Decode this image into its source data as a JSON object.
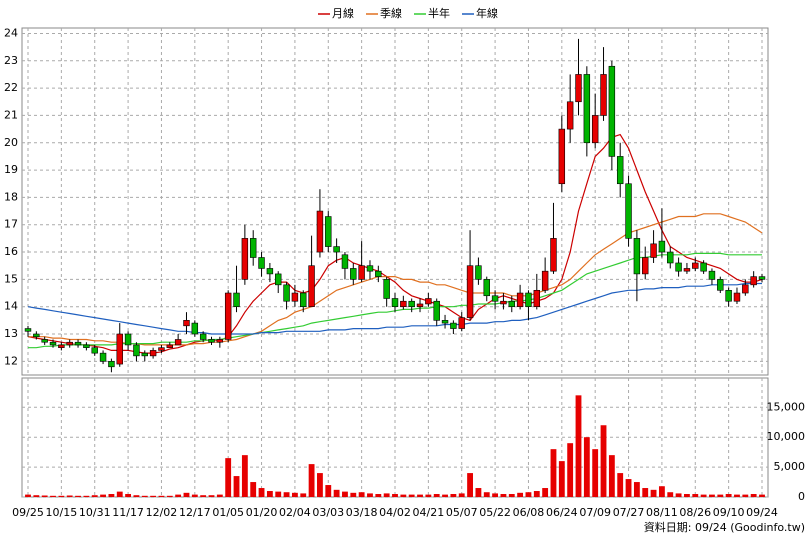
{
  "chart_data": {
    "type": "candlestick",
    "categories": [
      "09/25",
      null,
      null,
      null,
      "10/15",
      null,
      null,
      null,
      "10/31",
      null,
      null,
      null,
      "11/17",
      null,
      null,
      null,
      "12/02",
      null,
      null,
      null,
      "12/17",
      null,
      null,
      null,
      "01/05",
      null,
      null,
      null,
      "01/20",
      null,
      null,
      null,
      "02/04",
      null,
      null,
      null,
      "03/03",
      null,
      null,
      null,
      "03/18",
      null,
      null,
      null,
      "04/02",
      null,
      null,
      null,
      "04/21",
      null,
      null,
      null,
      "05/07",
      null,
      null,
      null,
      "05/22",
      null,
      null,
      null,
      "06/08",
      null,
      null,
      null,
      "06/24",
      null,
      null,
      null,
      "07/09",
      null,
      null,
      null,
      "07/27",
      null,
      null,
      null,
      "08/11",
      null,
      null,
      null,
      "08/26",
      null,
      null,
      null,
      "09/10",
      null,
      null,
      null,
      "09/24"
    ],
    "open": [
      13.2,
      13.0,
      12.8,
      12.7,
      12.5,
      12.6,
      12.7,
      12.6,
      12.5,
      12.3,
      12.0,
      11.9,
      13.0,
      12.6,
      12.3,
      12.2,
      12.4,
      12.5,
      12.6,
      13.3,
      13.4,
      13.0,
      12.8,
      12.7,
      12.8,
      14.5,
      15.0,
      16.5,
      15.8,
      15.4,
      15.2,
      14.8,
      14.2,
      14.5,
      14.0,
      16.0,
      17.3,
      16.2,
      15.9,
      15.4,
      15.0,
      15.5,
      15.3,
      15.0,
      14.3,
      14.0,
      14.2,
      14.0,
      14.1,
      14.2,
      13.5,
      13.4,
      13.2,
      13.6,
      15.5,
      15.0,
      14.4,
      14.1,
      14.2,
      14.0,
      14.5,
      14.0,
      14.6,
      15.3,
      18.5,
      20.5,
      21.5,
      22.5,
      20.0,
      21.0,
      22.8,
      19.5,
      18.5,
      16.5,
      15.2,
      15.8,
      16.4,
      16.0,
      15.6,
      15.3,
      15.4,
      15.6,
      15.3,
      15.0,
      14.6,
      14.2,
      14.5,
      14.8,
      15.1
    ],
    "high": [
      13.3,
      13.1,
      12.9,
      12.8,
      12.7,
      12.8,
      12.8,
      12.7,
      12.6,
      12.4,
      12.1,
      13.4,
      13.1,
      12.7,
      12.4,
      12.5,
      12.6,
      12.7,
      13.0,
      13.8,
      13.5,
      13.1,
      12.9,
      12.9,
      14.6,
      15.5,
      17.0,
      16.8,
      16.0,
      15.6,
      15.3,
      14.9,
      14.8,
      14.6,
      16.6,
      18.3,
      17.5,
      16.5,
      16.0,
      15.6,
      16.4,
      15.7,
      15.5,
      15.1,
      14.5,
      14.4,
      14.3,
      14.3,
      14.5,
      14.3,
      13.7,
      13.5,
      13.8,
      16.8,
      15.8,
      15.1,
      14.6,
      14.5,
      14.4,
      14.8,
      14.6,
      15.2,
      15.8,
      17.8,
      21.0,
      22.5,
      23.8,
      22.8,
      21.8,
      23.5,
      23.0,
      20.0,
      18.8,
      16.8,
      16.2,
      16.8,
      17.6,
      16.2,
      15.8,
      15.6,
      15.8,
      15.7,
      15.4,
      15.1,
      14.7,
      14.7,
      15.0,
      15.3,
      15.2
    ],
    "low": [
      12.9,
      12.8,
      12.6,
      12.5,
      12.4,
      12.5,
      12.5,
      12.4,
      12.2,
      11.9,
      11.6,
      11.8,
      12.4,
      12.0,
      12.0,
      12.1,
      12.3,
      12.5,
      12.6,
      13.0,
      12.9,
      12.7,
      12.6,
      12.5,
      12.7,
      13.8,
      14.8,
      15.5,
      15.1,
      14.9,
      14.5,
      13.9,
      14.0,
      13.8,
      14.0,
      15.8,
      16.0,
      15.6,
      15.0,
      14.8,
      14.9,
      15.0,
      14.9,
      14.0,
      13.8,
      13.9,
      13.8,
      13.8,
      14.0,
      13.3,
      13.2,
      13.0,
      13.1,
      13.5,
      14.8,
      14.2,
      13.9,
      13.9,
      13.8,
      13.9,
      13.5,
      13.9,
      14.5,
      15.2,
      18.2,
      20.0,
      21.0,
      19.5,
      19.8,
      20.8,
      19.0,
      18.0,
      16.2,
      14.2,
      15.0,
      15.6,
      15.8,
      15.4,
      15.1,
      15.2,
      15.3,
      15.2,
      14.8,
      14.5,
      14.0,
      14.1,
      14.4,
      14.7,
      14.9
    ],
    "close": [
      13.1,
      12.9,
      12.7,
      12.6,
      12.6,
      12.7,
      12.6,
      12.5,
      12.3,
      12.0,
      11.8,
      13.0,
      12.6,
      12.2,
      12.2,
      12.4,
      12.5,
      12.6,
      12.8,
      13.5,
      13.0,
      12.8,
      12.7,
      12.8,
      14.5,
      14.0,
      16.5,
      15.8,
      15.4,
      15.2,
      14.8,
      14.2,
      14.5,
      14.0,
      15.5,
      17.5,
      16.2,
      16.0,
      15.4,
      15.0,
      15.5,
      15.3,
      15.1,
      14.3,
      14.0,
      14.2,
      14.0,
      14.1,
      14.3,
      13.5,
      13.4,
      13.2,
      13.6,
      15.5,
      15.0,
      14.4,
      14.2,
      14.2,
      14.0,
      14.5,
      14.0,
      14.6,
      15.3,
      16.5,
      20.5,
      21.5,
      22.5,
      20.0,
      21.0,
      22.5,
      19.5,
      18.5,
      16.5,
      15.2,
      15.8,
      16.3,
      16.0,
      15.6,
      15.3,
      15.4,
      15.6,
      15.3,
      15.0,
      14.6,
      14.2,
      14.5,
      14.8,
      15.1,
      15.0
    ],
    "up_color": "#e60000",
    "down_color": "#00b400",
    "ylim": [
      11.5,
      24.2
    ],
    "yticks": [
      12,
      13,
      14,
      15,
      16,
      17,
      18,
      19,
      20,
      21,
      22,
      23,
      24
    ],
    "grid": true,
    "series": [
      {
        "name": "月線",
        "color": "#cc0000",
        "values": [
          12.9,
          12.85,
          12.8,
          12.75,
          12.7,
          12.65,
          12.6,
          12.6,
          12.55,
          12.5,
          12.4,
          12.4,
          12.4,
          12.35,
          12.3,
          12.3,
          12.35,
          12.45,
          12.5,
          12.6,
          12.7,
          12.75,
          12.8,
          12.75,
          12.9,
          13.3,
          13.8,
          14.2,
          14.5,
          14.8,
          14.9,
          14.9,
          14.6,
          14.5,
          14.6,
          15.0,
          15.5,
          15.7,
          15.8,
          15.6,
          15.5,
          15.4,
          15.3,
          15.1,
          14.9,
          14.6,
          14.4,
          14.3,
          14.2,
          14.1,
          14.0,
          13.8,
          13.6,
          13.5,
          13.9,
          14.1,
          14.3,
          14.4,
          14.3,
          14.2,
          14.1,
          14.2,
          14.3,
          14.5,
          15.0,
          16.0,
          17.5,
          18.5,
          19.5,
          19.8,
          20.2,
          20.3,
          19.8,
          19.0,
          18.2,
          17.5,
          16.8,
          16.2,
          16.0,
          15.8,
          15.7,
          15.6,
          15.5,
          15.4,
          15.2,
          15.0,
          14.9,
          14.9,
          15.0
        ]
      },
      {
        "name": "季線",
        "color": "#e07020",
        "values": [
          12.9,
          12.9,
          12.9,
          12.85,
          12.85,
          12.8,
          12.8,
          12.8,
          12.75,
          12.75,
          12.7,
          12.7,
          12.65,
          12.65,
          12.6,
          12.6,
          12.6,
          12.6,
          12.6,
          12.6,
          12.65,
          12.65,
          12.7,
          12.7,
          12.75,
          12.8,
          12.9,
          13.0,
          13.1,
          13.3,
          13.5,
          13.6,
          13.8,
          13.9,
          14.0,
          14.2,
          14.4,
          14.6,
          14.7,
          14.8,
          14.9,
          15.0,
          15.1,
          15.1,
          15.1,
          15.0,
          15.0,
          14.9,
          14.9,
          14.8,
          14.8,
          14.7,
          14.6,
          14.5,
          14.5,
          14.5,
          14.5,
          14.5,
          14.4,
          14.4,
          14.4,
          14.5,
          14.6,
          14.7,
          14.8,
          15.0,
          15.3,
          15.6,
          15.9,
          16.1,
          16.3,
          16.5,
          16.7,
          16.8,
          16.9,
          17.0,
          17.1,
          17.2,
          17.3,
          17.3,
          17.3,
          17.4,
          17.4,
          17.4,
          17.3,
          17.2,
          17.1,
          16.9,
          16.7
        ]
      },
      {
        "name": "半年",
        "color": "#33cc33",
        "values": [
          12.5,
          12.5,
          12.55,
          12.55,
          12.6,
          12.6,
          12.6,
          12.6,
          12.6,
          12.6,
          12.6,
          12.65,
          12.65,
          12.65,
          12.65,
          12.65,
          12.7,
          12.7,
          12.7,
          12.7,
          12.75,
          12.75,
          12.8,
          12.8,
          12.85,
          12.9,
          12.95,
          13.0,
          13.05,
          13.1,
          13.15,
          13.2,
          13.25,
          13.3,
          13.4,
          13.45,
          13.5,
          13.55,
          13.6,
          13.65,
          13.7,
          13.75,
          13.8,
          13.8,
          13.85,
          13.9,
          13.9,
          13.95,
          13.95,
          14.0,
          14.0,
          14.0,
          14.05,
          14.05,
          14.1,
          14.1,
          14.1,
          14.15,
          14.2,
          14.2,
          14.25,
          14.3,
          14.4,
          14.5,
          14.6,
          14.8,
          15.0,
          15.2,
          15.3,
          15.4,
          15.5,
          15.6,
          15.7,
          15.8,
          15.8,
          15.85,
          15.9,
          15.9,
          15.9,
          15.9,
          15.95,
          15.95,
          15.95,
          15.95,
          15.9,
          15.9,
          15.9,
          15.9,
          15.9
        ]
      },
      {
        "name": "年線",
        "color": "#1f5fbf",
        "values": [
          14.0,
          13.95,
          13.9,
          13.85,
          13.8,
          13.75,
          13.7,
          13.65,
          13.6,
          13.55,
          13.5,
          13.45,
          13.4,
          13.35,
          13.3,
          13.25,
          13.2,
          13.15,
          13.1,
          13.1,
          13.05,
          13.05,
          13.0,
          13.0,
          13.0,
          13.0,
          13.0,
          13.0,
          13.05,
          13.05,
          13.05,
          13.1,
          13.1,
          13.1,
          13.1,
          13.1,
          13.15,
          13.15,
          13.15,
          13.2,
          13.2,
          13.2,
          13.2,
          13.25,
          13.25,
          13.25,
          13.3,
          13.3,
          13.3,
          13.3,
          13.35,
          13.35,
          13.35,
          13.4,
          13.4,
          13.4,
          13.45,
          13.45,
          13.5,
          13.5,
          13.55,
          13.6,
          13.7,
          13.8,
          13.9,
          14.0,
          14.1,
          14.2,
          14.3,
          14.4,
          14.5,
          14.55,
          14.6,
          14.6,
          14.65,
          14.65,
          14.7,
          14.7,
          14.7,
          14.75,
          14.75,
          14.75,
          14.8,
          14.8,
          14.8,
          14.8,
          14.85,
          14.85,
          14.85
        ]
      }
    ],
    "volume": {
      "color": "#e60000",
      "ylim": [
        0,
        19900
      ],
      "yticks": [
        0,
        {
          "value": 5000,
          "label": "5,000"
        },
        {
          "value": 10000,
          "label": "10,000"
        },
        {
          "value": 15000,
          "label": "15,000"
        }
      ],
      "values": [
        400,
        300,
        250,
        200,
        200,
        250,
        200,
        200,
        300,
        400,
        500,
        900,
        500,
        300,
        200,
        200,
        200,
        200,
        400,
        700,
        400,
        300,
        300,
        400,
        6500,
        3500,
        7000,
        2500,
        1500,
        1000,
        900,
        800,
        700,
        600,
        5500,
        4000,
        2000,
        1200,
        900,
        700,
        800,
        600,
        500,
        600,
        500,
        400,
        400,
        400,
        400,
        500,
        400,
        500,
        600,
        4000,
        1500,
        800,
        600,
        500,
        500,
        700,
        800,
        1000,
        1500,
        8000,
        6000,
        9000,
        17000,
        10000,
        8000,
        12000,
        7000,
        4000,
        3000,
        2500,
        1500,
        1200,
        1800,
        800,
        600,
        500,
        500,
        400,
        400,
        400,
        500,
        400,
        400,
        500,
        400
      ]
    },
    "footer": "資料日期: 09/24  (Goodinfo.tw)"
  }
}
